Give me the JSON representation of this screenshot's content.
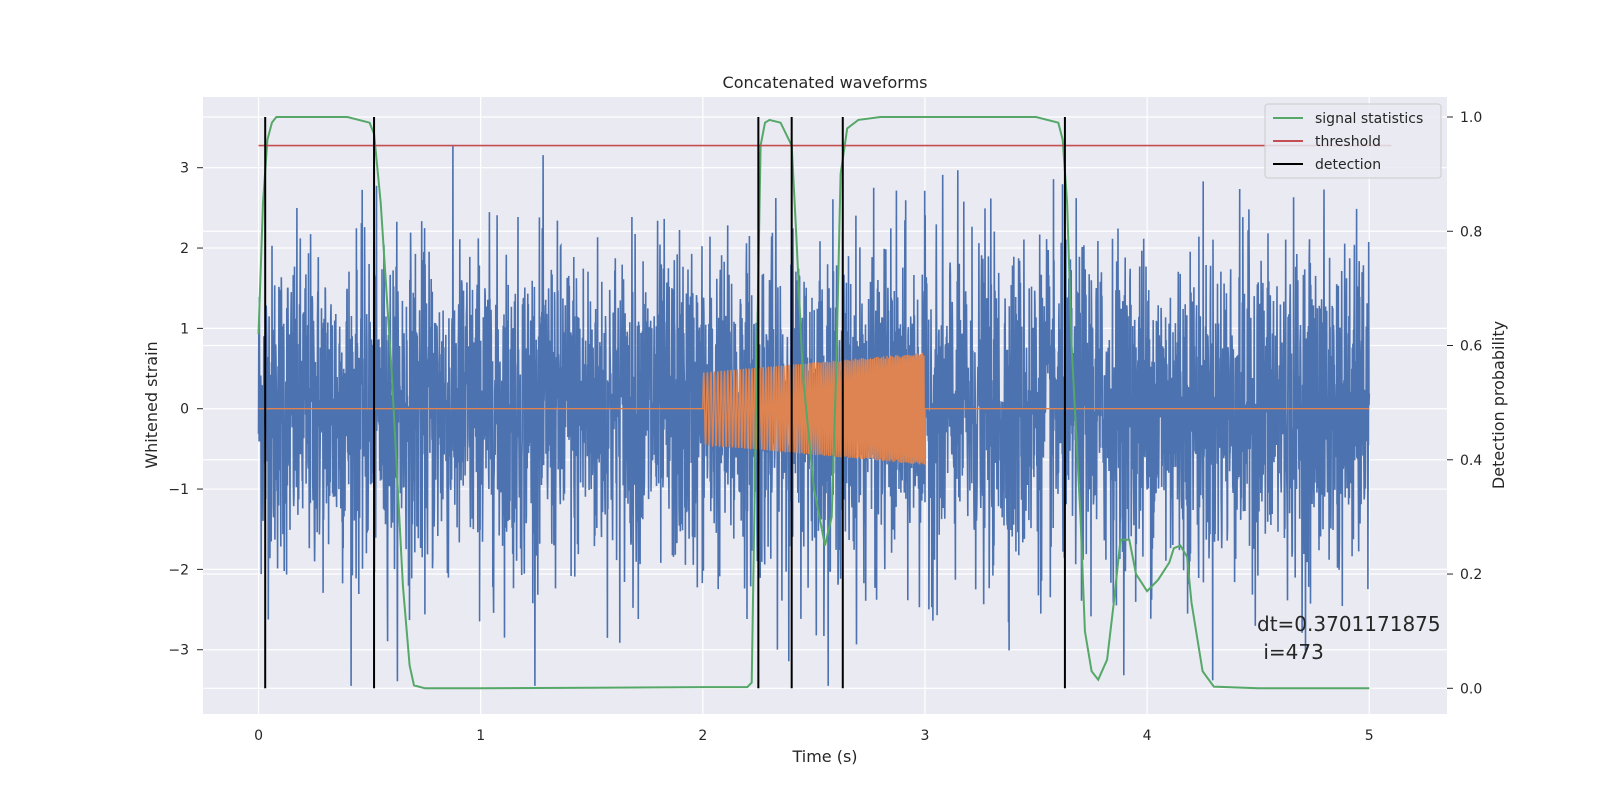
{
  "chart_data": {
    "type": "line",
    "title": "Concatenated waveforms",
    "xlabel": "Time (s)",
    "ylabel_left": "Whitened strain",
    "ylabel_right": "Detection probability",
    "xlim": [
      -0.25,
      5.35
    ],
    "ylim_left": [
      -3.8,
      3.88
    ],
    "ylim_right": [
      -0.045,
      1.035
    ],
    "x_ticks": [
      0,
      1,
      2,
      3,
      4,
      5
    ],
    "x_tick_labels": [
      "0",
      "1",
      "2",
      "3",
      "4",
      "5"
    ],
    "y_ticks_left": [
      -3,
      -2,
      -1,
      0,
      1,
      2,
      3
    ],
    "y_tick_labels_left": [
      "−3",
      "−2",
      "−1",
      "0",
      "1",
      "2",
      "3"
    ],
    "y_ticks_right": [
      0.0,
      0.2,
      0.4,
      0.6,
      0.8,
      1.0
    ],
    "y_tick_labels_right": [
      "0.0",
      "0.2",
      "0.4",
      "0.6",
      "0.8",
      "1.0"
    ],
    "grid": true,
    "legend_position": "upper right",
    "legend": [
      "signal statistics",
      "threshold",
      "detection"
    ],
    "series": [
      {
        "name": "",
        "axis": "left",
        "color": "#4c72b0",
        "description_values": {
          "x_start": 0,
          "x_end": 5,
          "amplitude_typical": 1.0,
          "peak_max": 3.4,
          "peak_min": -3.45
        }
      },
      {
        "name": "",
        "axis": "left",
        "color": "#dd8452",
        "x_start": 0,
        "x_end": 5,
        "chirp_start": 2.0,
        "chirp_end": 3.0,
        "chirp_amp_start": 0.45,
        "chirp_amp_end": 0.7
      },
      {
        "name": "signal statistics",
        "axis": "right",
        "color": "#55a868",
        "x": [
          0.0,
          0.02,
          0.04,
          0.06,
          0.08,
          0.1,
          0.2,
          0.4,
          0.5,
          0.52,
          0.55,
          0.6,
          0.65,
          0.68,
          0.7,
          0.75,
          1.0,
          1.5,
          2.0,
          2.1,
          2.2,
          2.22,
          2.24,
          2.26,
          2.28,
          2.3,
          2.35,
          2.4,
          2.42,
          2.45,
          2.5,
          2.55,
          2.58,
          2.6,
          2.62,
          2.65,
          2.7,
          2.8,
          3.0,
          3.5,
          3.6,
          3.62,
          3.64,
          3.66,
          3.7,
          3.72,
          3.75,
          3.78,
          3.82,
          3.85,
          3.88,
          3.92,
          3.95,
          4.0,
          4.05,
          4.1,
          4.12,
          4.15,
          4.18,
          4.2,
          4.25,
          4.3,
          4.5,
          5.0
        ],
        "y": [
          0.62,
          0.85,
          0.96,
          0.99,
          1.0,
          1.0,
          1.0,
          1.0,
          0.99,
          0.97,
          0.85,
          0.55,
          0.18,
          0.04,
          0.005,
          0.0,
          0.0,
          0.001,
          0.002,
          0.002,
          0.002,
          0.01,
          0.5,
          0.95,
          0.99,
          0.995,
          0.99,
          0.95,
          0.8,
          0.55,
          0.35,
          0.25,
          0.3,
          0.55,
          0.9,
          0.98,
          0.995,
          1.0,
          1.0,
          1.0,
          0.99,
          0.96,
          0.85,
          0.6,
          0.3,
          0.1,
          0.03,
          0.015,
          0.05,
          0.15,
          0.26,
          0.26,
          0.2,
          0.17,
          0.19,
          0.22,
          0.245,
          0.25,
          0.23,
          0.15,
          0.03,
          0.003,
          0.0,
          0.0
        ]
      },
      {
        "name": "threshold",
        "axis": "right",
        "color": "#c44e52",
        "x": [
          0,
          5.1
        ],
        "y": [
          0.95,
          0.95
        ]
      },
      {
        "name": "detection",
        "axis": "right",
        "color": "#000000",
        "type": "vlines",
        "x": [
          0.03,
          0.52,
          2.25,
          2.4,
          2.63,
          3.63
        ],
        "ymin": 0.0,
        "ymax": 1.0
      }
    ],
    "annotation": {
      "line1": "dt=0.3701171875",
      "line2": " i=473",
      "x": 4.5,
      "y_right": 0.1
    }
  }
}
